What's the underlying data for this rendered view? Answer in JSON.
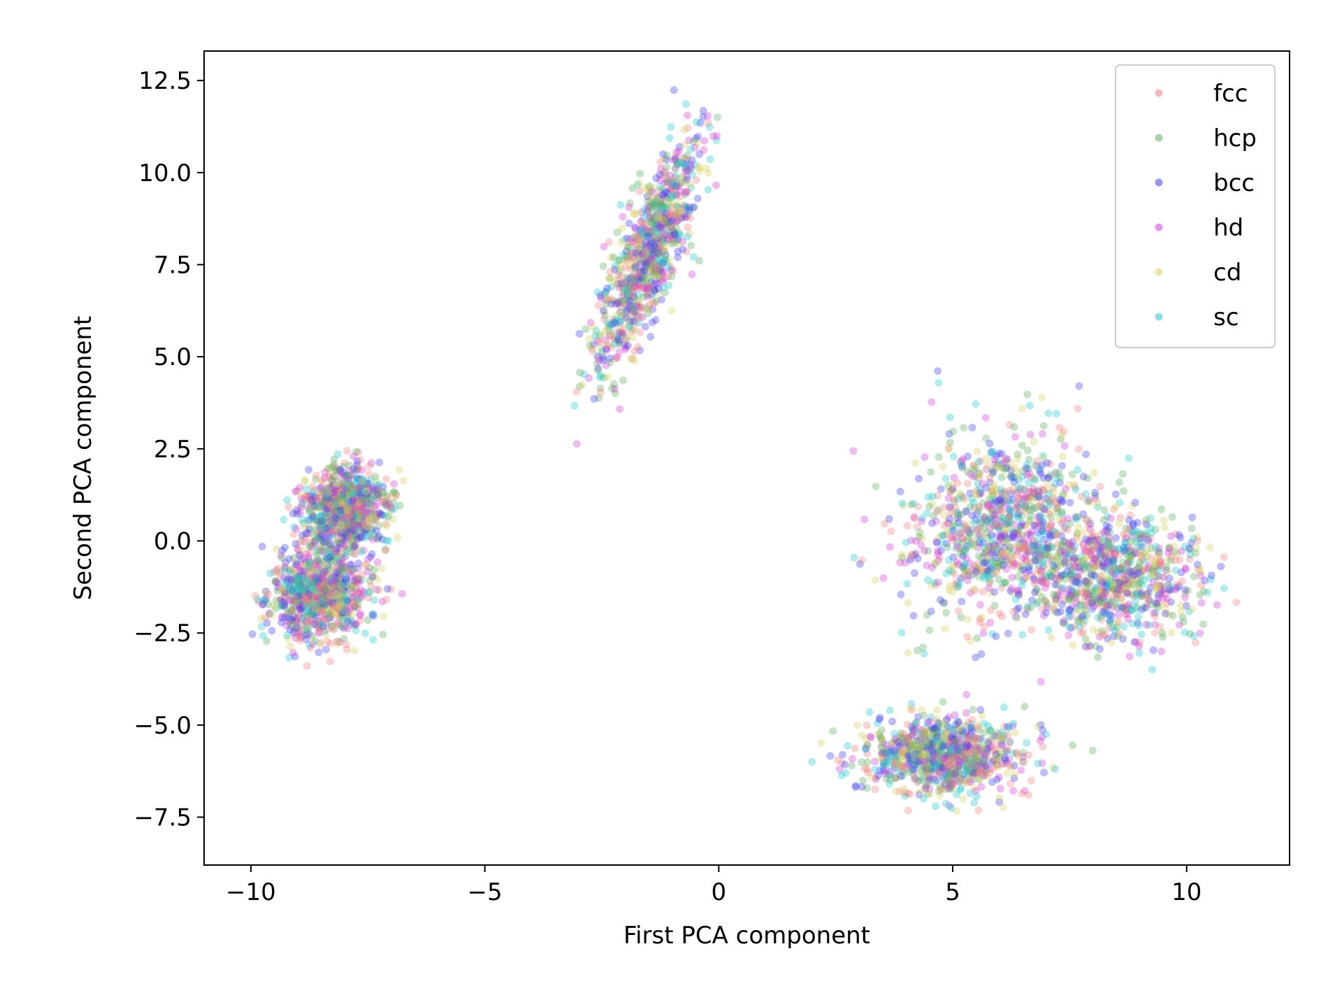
{
  "chart_data": {
    "type": "scatter",
    "title": "",
    "xlabel": "First PCA component",
    "ylabel": "Second PCA component",
    "xlim": [
      -11,
      12.2
    ],
    "ylim": [
      -8.8,
      13.3
    ],
    "xticks": [
      {
        "value": -10,
        "label": "−10"
      },
      {
        "value": -5,
        "label": "−5"
      },
      {
        "value": 0,
        "label": "0"
      },
      {
        "value": 5,
        "label": "5"
      },
      {
        "value": 10,
        "label": "10"
      }
    ],
    "yticks": [
      {
        "value": -7.5,
        "label": "−7.5"
      },
      {
        "value": -5.0,
        "label": "−5.0"
      },
      {
        "value": -2.5,
        "label": "−2.5"
      },
      {
        "value": 0.0,
        "label": "0.0"
      },
      {
        "value": 2.5,
        "label": "2.5"
      },
      {
        "value": 5.0,
        "label": "5.0"
      },
      {
        "value": 7.5,
        "label": "7.5"
      },
      {
        "value": 10.0,
        "label": "10.0"
      },
      {
        "value": 12.5,
        "label": "12.5"
      }
    ],
    "grid": false,
    "legend_position": "top-right",
    "marker_alpha": 0.35,
    "series": [
      {
        "name": "fcc",
        "color": "#f08080"
      },
      {
        "name": "hcp",
        "color": "#5fae5f"
      },
      {
        "name": "bcc",
        "color": "#4040f0"
      },
      {
        "name": "hd",
        "color": "#d040d8"
      },
      {
        "name": "cd",
        "color": "#d8d060"
      },
      {
        "name": "sc",
        "color": "#20c8d0"
      }
    ],
    "clusters": [
      {
        "center": [
          -8.0,
          0.9
        ],
        "spread": [
          0.45,
          0.55
        ],
        "corr": 0.1
      },
      {
        "center": [
          -8.5,
          -1.4
        ],
        "spread": [
          0.55,
          0.65
        ],
        "corr": 0.1
      },
      {
        "center": [
          -1.5,
          7.8
        ],
        "spread": [
          0.55,
          1.55
        ],
        "corr": 0.8
      },
      {
        "center": [
          6.0,
          0.5
        ],
        "spread": [
          0.95,
          1.2
        ],
        "corr": 0.2
      },
      {
        "center": [
          8.3,
          -1.0
        ],
        "spread": [
          0.95,
          0.85
        ],
        "corr": 0.0
      },
      {
        "center": [
          4.8,
          -5.8
        ],
        "spread": [
          0.85,
          0.5
        ],
        "corr": 0.0
      }
    ]
  }
}
